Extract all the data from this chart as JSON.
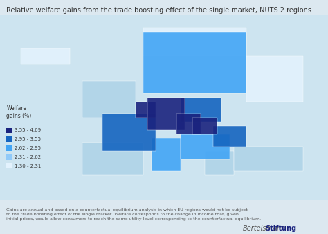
{
  "title": "Relative welfare gains from the trade boosting effect of the single market, NUTS 2 regions",
  "background_color": "#dce8f0",
  "legend_title": "Welfare\ngains (%)",
  "legend_labels": [
    "3.55 - 4.69",
    "2.95 - 3.55",
    "2.62 - 2.95",
    "2.31 - 2.62",
    "1.30 - 2.31"
  ],
  "legend_colors": [
    "#1a237e",
    "#1565c0",
    "#42a5f5",
    "#90caf9",
    "#e3f2fd"
  ],
  "map_background": "#dce8f0",
  "land_no_data": "#f0f4f8",
  "footnote": "Gains are annual and based on a counterfactual equilibrium analysis in which EU regions would not be subject\nto the trade boosting effect of the single market. Welfare corresponds to the change in income that, given\ninitial prices, would allow consumers to reach the same utility level corresponding to the counterfactual equilibrium.",
  "branding": "BertelsmannStiftung",
  "fig_width": 4.74,
  "fig_height": 3.38
}
